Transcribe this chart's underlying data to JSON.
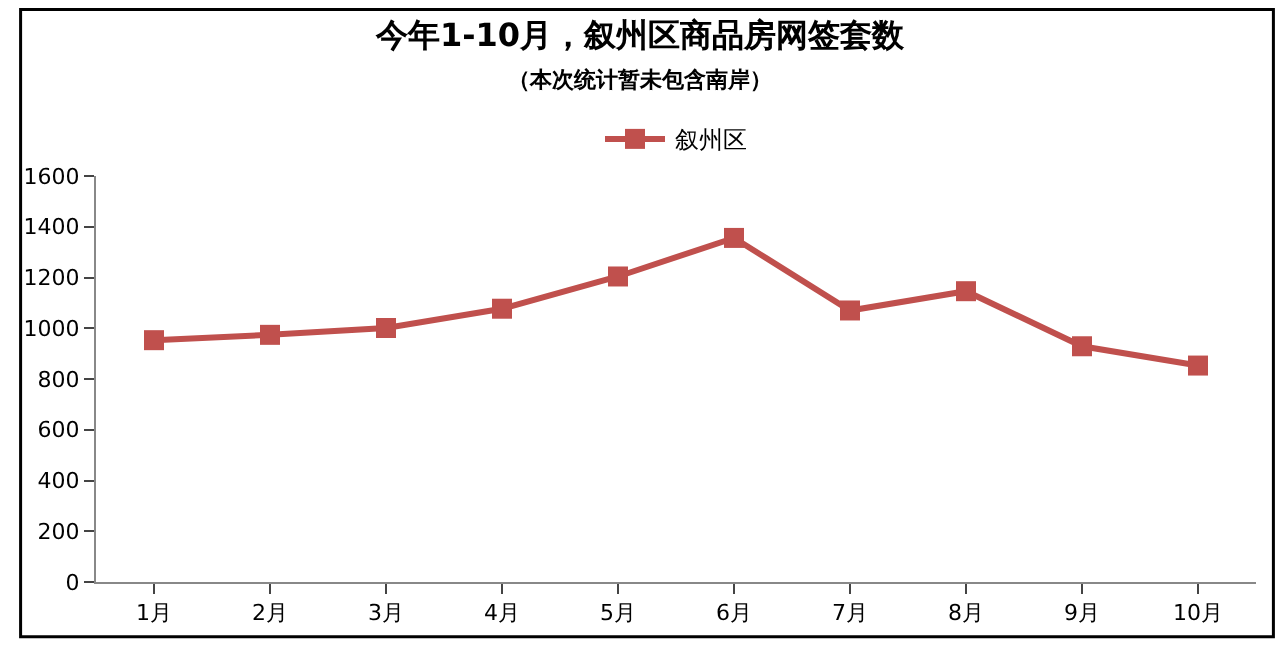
{
  "chart_data": {
    "type": "line",
    "title": "今年1-10月，叙州区商品房网签套数",
    "subtitle": "（本次统计暂未包含南岸）",
    "categories": [
      "1月",
      "2月",
      "3月",
      "4月",
      "5月",
      "6月",
      "7月",
      "8月",
      "9月",
      "10月"
    ],
    "series": [
      {
        "name": "叙州区",
        "color": "#c0504d",
        "values": [
          953,
          974,
          1001,
          1077,
          1204,
          1356,
          1070,
          1146,
          929,
          853
        ]
      }
    ],
    "ylim": [
      0,
      1600
    ],
    "yticks": [
      0,
      200,
      400,
      600,
      800,
      1000,
      1200,
      1400,
      1600
    ],
    "grid": false,
    "legend": "top",
    "marker": "square",
    "line_style": "solid"
  }
}
